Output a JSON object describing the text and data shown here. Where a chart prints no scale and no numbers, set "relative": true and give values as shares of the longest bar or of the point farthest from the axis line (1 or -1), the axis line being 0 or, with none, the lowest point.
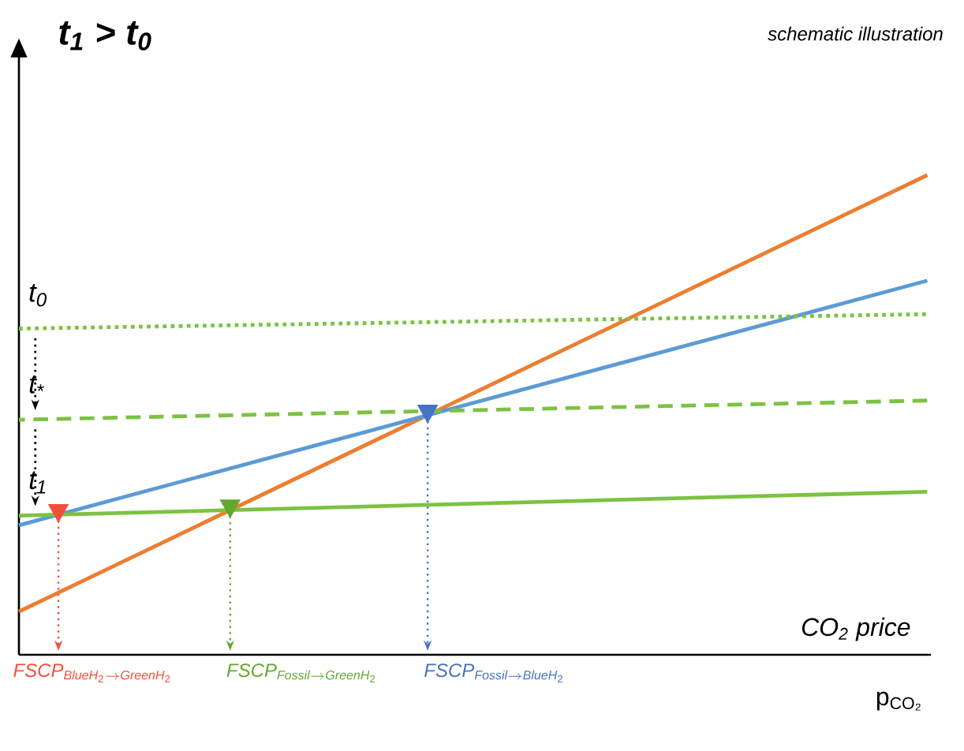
{
  "chart_data": {
    "type": "line",
    "title": "t$_{1}$ > t$_{0}$",
    "subtitle": "schematic illustration",
    "xlabel": "CO$_{2}$ price",
    "annotations": [
      "p$_{CO₂}$",
      "FSCP_{BlueH_2\\rightarrow GreenH_2}",
      "FSCP_{Fossil\\rightarrow GreenH_2}",
      "FSCP_{Fossil\\rightarrow BlueH_2}"
    ],
    "categories": [
      null,
      null
    ],
    "relative": true,
    "series": [
      {
        "color": "#ed7d31",
        "values": [
          0.09,
          1.0
        ]
      },
      {
        "color": "#5b9bd5",
        "values": [
          0.27,
          0.78
        ]
      },
      {
        "name": "t$_{0}$",
        "color": "#7cc242",
        "line_style": "dotted",
        "values": [
          0.68,
          0.71
        ]
      },
      {
        "name": "t$_{*}$",
        "color": "#7cc242",
        "line_style": "dashed",
        "values": [
          0.49,
          0.53
        ]
      },
      {
        "name": "t$_{1}$",
        "color": "#7cc242",
        "line_style": "solid",
        "values": [
          0.29,
          0.34
        ]
      }
    ]
  }
}
